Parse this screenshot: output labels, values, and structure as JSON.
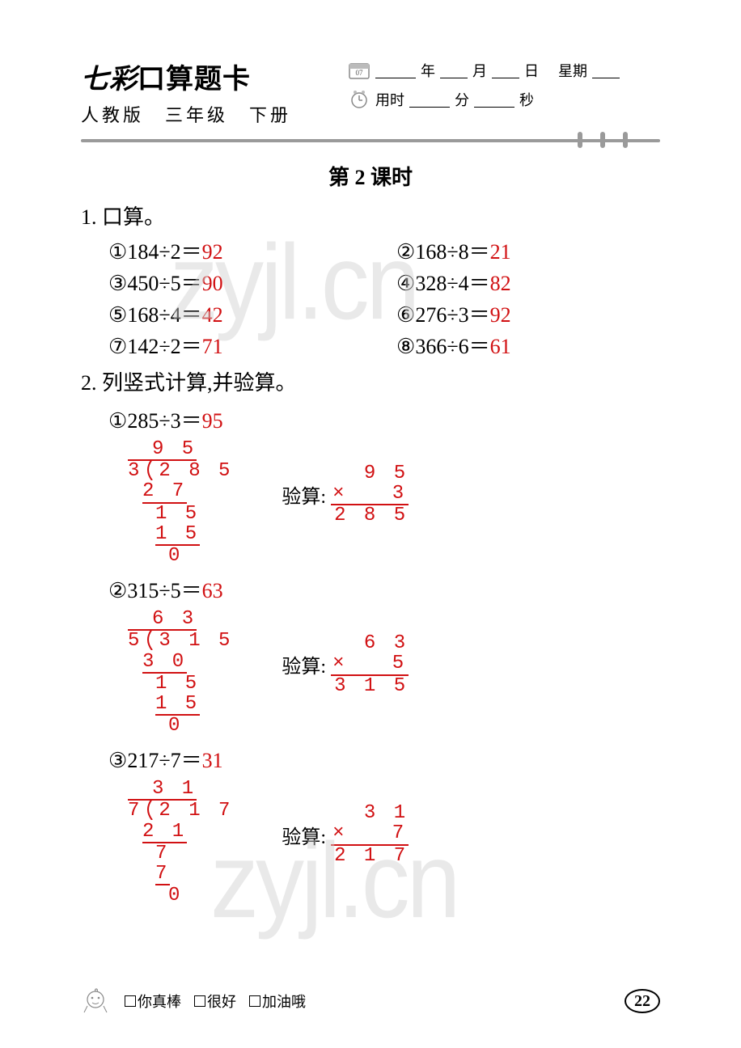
{
  "header": {
    "title_prefix": "七彩",
    "title_rest": "口算题卡",
    "subtitle": "人教版　三年级　下册",
    "cal_badge": "07",
    "date_year": "年",
    "date_month": "月",
    "date_day": "日",
    "weekday": "星期",
    "time_used": "用时",
    "minute": "分",
    "second": "秒"
  },
  "lesson_title": "第 2 课时",
  "section1": {
    "heading": "1. 口算。",
    "items": [
      {
        "num": "①",
        "expr": "184÷2＝",
        "ans": "92"
      },
      {
        "num": "②",
        "expr": "168÷8＝",
        "ans": "21"
      },
      {
        "num": "③",
        "expr": "450÷5＝",
        "ans": "90"
      },
      {
        "num": "④",
        "expr": "328÷4＝",
        "ans": "82"
      },
      {
        "num": "⑤",
        "expr": "168÷4＝",
        "ans": "42"
      },
      {
        "num": "⑥",
        "expr": "276÷3＝",
        "ans": "92"
      },
      {
        "num": "⑦",
        "expr": "142÷2＝",
        "ans": "71"
      },
      {
        "num": "⑧",
        "expr": "366÷6＝",
        "ans": "61"
      }
    ]
  },
  "section2": {
    "heading": "2. 列竖式计算,并验算。",
    "verify_word": "验算",
    "problems": [
      {
        "num": "①",
        "expr": "285÷3＝",
        "ans": "95",
        "div": {
          "divisor": "3",
          "dividend": "285",
          "quotient": "9 5",
          "steps": [
            "2 7",
            "1 5",
            "1 5",
            "0"
          ]
        },
        "ver": {
          "top": "9 5",
          "mul": "3",
          "res": "2 8 5"
        }
      },
      {
        "num": "②",
        "expr": "315÷5＝",
        "ans": "63",
        "div": {
          "divisor": "5",
          "dividend": "315",
          "quotient": "6 3",
          "steps": [
            "3 0",
            "1 5",
            "1 5",
            "0"
          ]
        },
        "ver": {
          "top": "6 3",
          "mul": "5",
          "res": "3 1 5"
        }
      },
      {
        "num": "③",
        "expr": "217÷7＝",
        "ans": "31",
        "div": {
          "divisor": "7",
          "dividend": "217",
          "quotient": "3 1",
          "steps": [
            "2 1",
            "7",
            "7",
            "0"
          ]
        },
        "ver": {
          "top": "3 1",
          "mul": "7",
          "res": "2 1 7"
        }
      }
    ]
  },
  "footer": {
    "opts": [
      "你真棒",
      "很好",
      "加油哦"
    ],
    "page": "22"
  },
  "watermark": "zyjl.cn",
  "colors": {
    "answer": "#d11012",
    "divider": "#9a9a9a",
    "text": "#000000",
    "watermark": "#d0d0d0",
    "bg": "#ffffff"
  }
}
